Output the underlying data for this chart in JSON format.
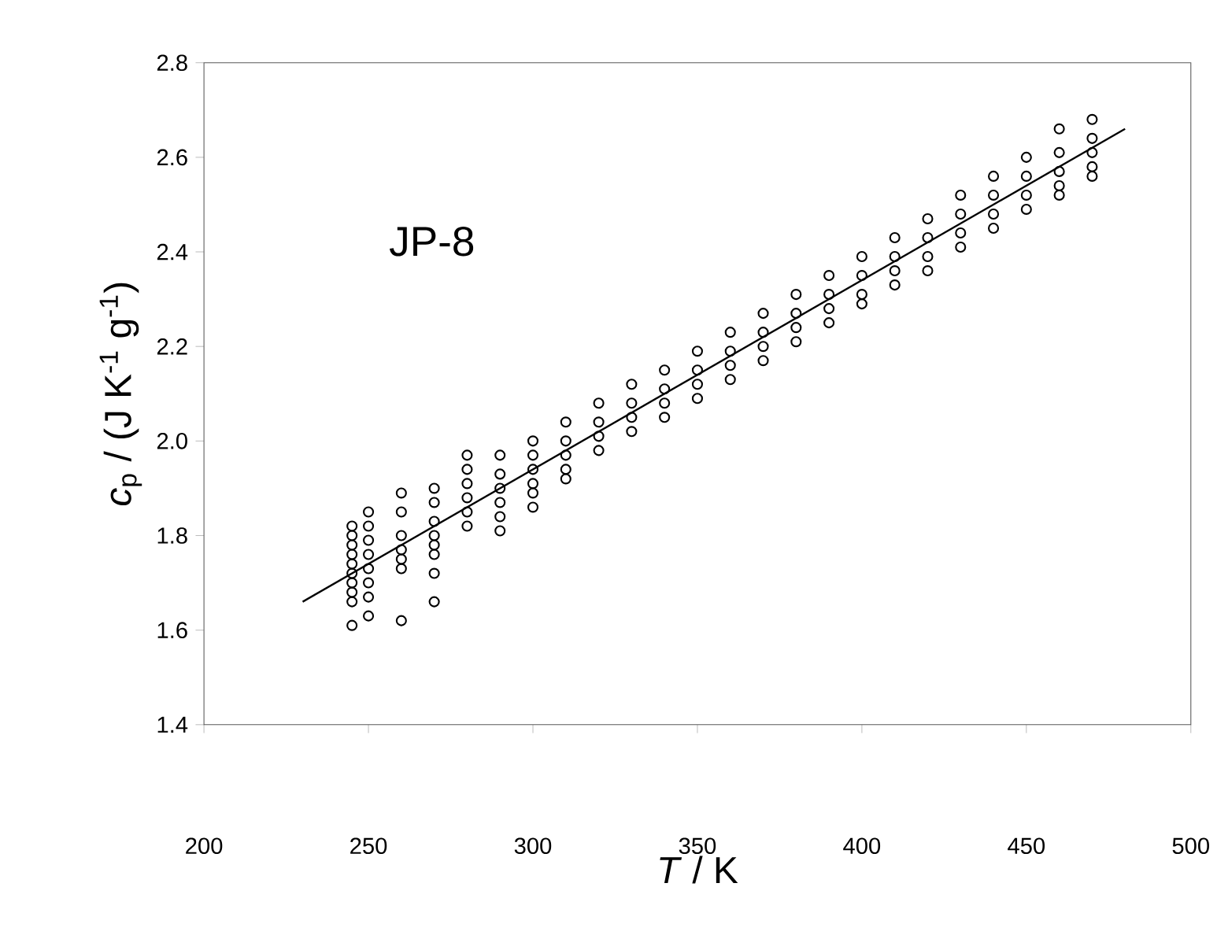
{
  "chart_data": {
    "type": "scatter",
    "xlabel": "*T* / K",
    "ylabel": "*c*$_{p}$ / (J K$^{-1}$ g$^{-1}$)",
    "annotations": [
      "JP-8"
    ],
    "xlim": [
      200,
      500
    ],
    "ylim": [
      1.4,
      2.8
    ],
    "xticks": [
      200,
      250,
      300,
      350,
      400,
      450,
      500
    ],
    "yticks": [
      1.4,
      1.6,
      1.8,
      {
        "value": 2,
        "label": "2.0"
      },
      2.2,
      2.4,
      2.6,
      2.8
    ],
    "grid": false,
    "series": [
      {
        "marker": "circle",
        "color": "#000000",
        "x": [
          245,
          245,
          245,
          245,
          245,
          245,
          245,
          245,
          245,
          245,
          250,
          250,
          250,
          250,
          250,
          250,
          250,
          250,
          260,
          260,
          260,
          260,
          260,
          260,
          260,
          270,
          270,
          270,
          270,
          270,
          270,
          270,
          270,
          280,
          280,
          280,
          280,
          280,
          280,
          290,
          290,
          290,
          290,
          290,
          290,
          300,
          300,
          300,
          300,
          300,
          300,
          310,
          310,
          310,
          310,
          310,
          320,
          320,
          320,
          320,
          330,
          330,
          330,
          330,
          340,
          340,
          340,
          340,
          350,
          350,
          350,
          350,
          360,
          360,
          360,
          360,
          370,
          370,
          370,
          370,
          380,
          380,
          380,
          380,
          390,
          390,
          390,
          390,
          400,
          400,
          400,
          400,
          410,
          410,
          410,
          410,
          420,
          420,
          420,
          420,
          430,
          430,
          430,
          430,
          440,
          440,
          440,
          440,
          450,
          450,
          450,
          450,
          460,
          460,
          460,
          460,
          460,
          470,
          470,
          470,
          470,
          470
        ],
        "values": [
          1.82,
          1.8,
          1.78,
          1.76,
          1.74,
          1.72,
          1.7,
          1.68,
          1.66,
          1.61,
          1.85,
          1.82,
          1.79,
          1.76,
          1.73,
          1.7,
          1.67,
          1.63,
          1.89,
          1.85,
          1.8,
          1.77,
          1.75,
          1.73,
          1.62,
          1.9,
          1.87,
          1.83,
          1.8,
          1.78,
          1.76,
          1.72,
          1.66,
          1.97,
          1.94,
          1.91,
          1.88,
          1.85,
          1.82,
          1.97,
          1.93,
          1.9,
          1.87,
          1.84,
          1.81,
          2.0,
          1.97,
          1.94,
          1.91,
          1.89,
          1.86,
          2.04,
          2.0,
          1.97,
          1.94,
          1.92,
          2.08,
          2.04,
          2.01,
          1.98,
          2.12,
          2.08,
          2.05,
          2.02,
          2.15,
          2.11,
          2.08,
          2.05,
          2.19,
          2.15,
          2.12,
          2.09,
          2.23,
          2.19,
          2.16,
          2.13,
          2.27,
          2.23,
          2.2,
          2.17,
          2.31,
          2.27,
          2.24,
          2.21,
          2.35,
          2.31,
          2.28,
          2.25,
          2.39,
          2.35,
          2.31,
          2.29,
          2.43,
          2.39,
          2.36,
          2.33,
          2.47,
          2.43,
          2.39,
          2.36,
          2.52,
          2.48,
          2.44,
          2.41,
          2.56,
          2.52,
          2.48,
          2.45,
          2.6,
          2.56,
          2.52,
          2.49,
          2.66,
          2.61,
          2.57,
          2.54,
          2.52,
          2.68,
          2.64,
          2.61,
          2.58,
          2.56
        ]
      },
      {
        "type": "line",
        "marker": "none",
        "color": "#000000",
        "x": [
          230,
          480
        ],
        "values": [
          1.66,
          2.66
        ]
      }
    ]
  }
}
